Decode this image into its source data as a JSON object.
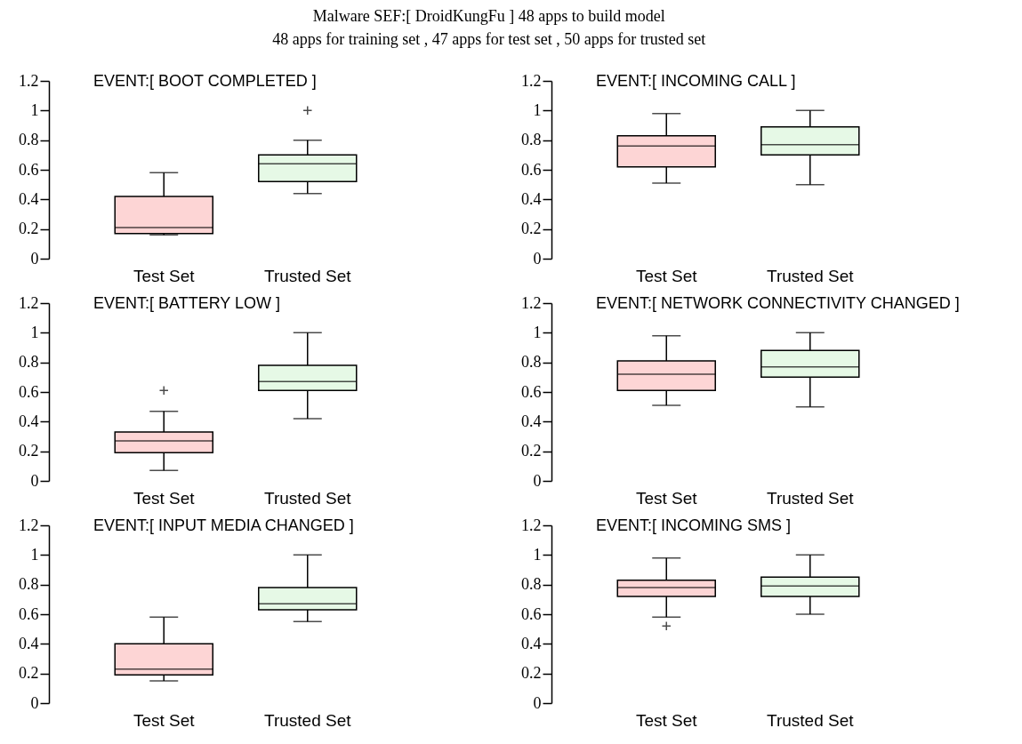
{
  "chart_data": [
    {
      "type": "box",
      "title": "Malware SEF:[ DroidKungFu ] 48 apps to build model",
      "subtitle": "48 apps for training set , 47 apps for test set , 50 apps for trusted set",
      "annotations": [
        "EVENT:[ BOOT COMPLETED ]"
      ],
      "categories": [
        "Test Set",
        "Trusted Set"
      ],
      "colors": [
        "#fdd5d5",
        "#e6f9e6"
      ],
      "ylim": [
        0,
        1.2
      ],
      "yticks": [
        0,
        0.2,
        0.4,
        0.6,
        0.8,
        1,
        1.2
      ],
      "grid": false,
      "boxes": [
        {
          "low": 0.16,
          "q1": 0.17,
          "median": 0.21,
          "q3": 0.42,
          "high": 0.58
        },
        {
          "low": 0.44,
          "q1": 0.52,
          "median": 0.64,
          "q3": 0.7,
          "high": 0.8,
          "outliers": [
            1.0
          ]
        }
      ]
    },
    {
      "type": "box",
      "annotations": [
        "EVENT:[ INCOMING CALL ]"
      ],
      "categories": [
        "Test Set",
        "Trusted Set"
      ],
      "colors": [
        "#fdd5d5",
        "#e6f9e6"
      ],
      "ylim": [
        0,
        1.2
      ],
      "yticks": [
        0,
        0.2,
        0.4,
        0.6,
        0.8,
        1,
        1.2
      ],
      "grid": false,
      "boxes": [
        {
          "low": 0.51,
          "q1": 0.62,
          "median": 0.76,
          "q3": 0.83,
          "high": 0.98
        },
        {
          "low": 0.5,
          "q1": 0.7,
          "median": 0.77,
          "q3": 0.89,
          "high": 1.0
        }
      ]
    },
    {
      "type": "box",
      "annotations": [
        "EVENT:[ BATTERY LOW ]"
      ],
      "categories": [
        "Test Set",
        "Trusted Set"
      ],
      "colors": [
        "#fdd5d5",
        "#e6f9e6"
      ],
      "ylim": [
        0,
        1.2
      ],
      "yticks": [
        0,
        0.2,
        0.4,
        0.6,
        0.8,
        1,
        1.2
      ],
      "grid": false,
      "boxes": [
        {
          "low": 0.07,
          "q1": 0.19,
          "median": 0.27,
          "q3": 0.33,
          "high": 0.47,
          "outliers": [
            0.61
          ]
        },
        {
          "low": 0.42,
          "q1": 0.61,
          "median": 0.67,
          "q3": 0.78,
          "high": 1.0
        }
      ]
    },
    {
      "type": "box",
      "annotations": [
        "EVENT:[ NETWORK CONNECTIVITY CHANGED ]"
      ],
      "categories": [
        "Test Set",
        "Trusted Set"
      ],
      "colors": [
        "#fdd5d5",
        "#e6f9e6"
      ],
      "ylim": [
        0,
        1.2
      ],
      "yticks": [
        0,
        0.2,
        0.4,
        0.6,
        0.8,
        1,
        1.2
      ],
      "grid": false,
      "boxes": [
        {
          "low": 0.51,
          "q1": 0.61,
          "median": 0.72,
          "q3": 0.81,
          "high": 0.98
        },
        {
          "low": 0.5,
          "q1": 0.7,
          "median": 0.77,
          "q3": 0.88,
          "high": 1.0
        }
      ]
    },
    {
      "type": "box",
      "annotations": [
        "EVENT:[ INPUT MEDIA CHANGED ]"
      ],
      "categories": [
        "Test Set",
        "Trusted Set"
      ],
      "colors": [
        "#fdd5d5",
        "#e6f9e6"
      ],
      "ylim": [
        0,
        1.2
      ],
      "yticks": [
        0,
        0.2,
        0.4,
        0.6,
        0.8,
        1,
        1.2
      ],
      "grid": false,
      "boxes": [
        {
          "low": 0.15,
          "q1": 0.19,
          "median": 0.23,
          "q3": 0.4,
          "high": 0.58
        },
        {
          "low": 0.55,
          "q1": 0.63,
          "median": 0.67,
          "q3": 0.78,
          "high": 1.0
        }
      ]
    },
    {
      "type": "box",
      "annotations": [
        "EVENT:[ INCOMING SMS ]"
      ],
      "categories": [
        "Test Set",
        "Trusted Set"
      ],
      "colors": [
        "#fdd5d5",
        "#e6f9e6"
      ],
      "ylim": [
        0,
        1.2
      ],
      "yticks": [
        0,
        0.2,
        0.4,
        0.6,
        0.8,
        1,
        1.2
      ],
      "grid": false,
      "boxes": [
        {
          "low": 0.58,
          "q1": 0.72,
          "median": 0.78,
          "q3": 0.83,
          "high": 0.98,
          "outliers": [
            0.52
          ]
        },
        {
          "low": 0.6,
          "q1": 0.72,
          "median": 0.79,
          "q3": 0.85,
          "high": 1.0
        }
      ]
    }
  ]
}
